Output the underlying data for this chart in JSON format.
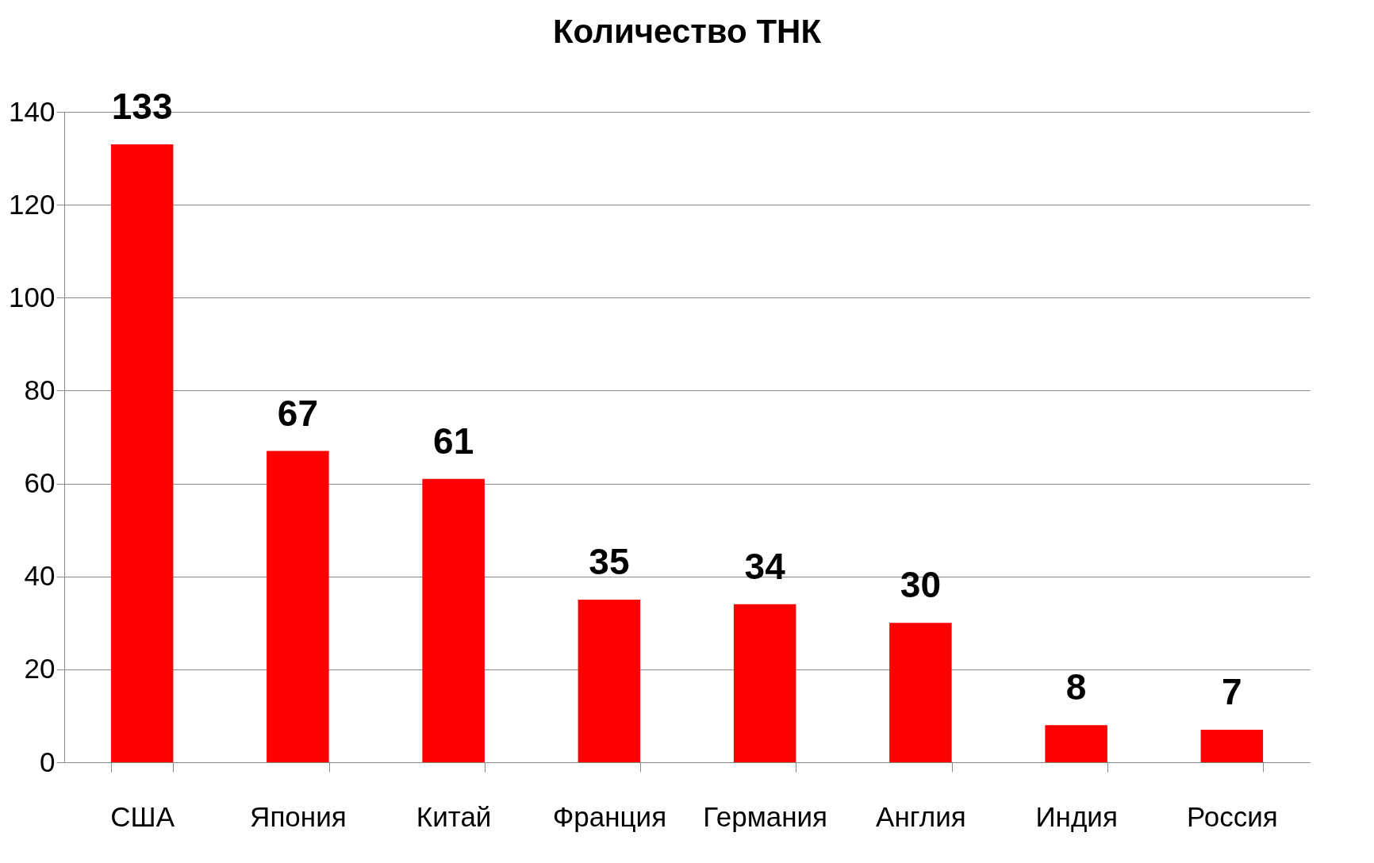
{
  "chart_data": {
    "type": "bar",
    "title": "Количество ТНК",
    "categories": [
      "США",
      "Япония",
      "Китай",
      "Франция",
      "Германия",
      "Англия",
      "Индия",
      "Россия"
    ],
    "values": [
      133,
      67,
      61,
      35,
      34,
      30,
      8,
      7
    ],
    "color": "#ff0000",
    "ylim": [
      0,
      140
    ],
    "yticks": [
      0,
      20,
      40,
      60,
      80,
      100,
      120,
      140
    ],
    "grid": "y",
    "data_labels": true
  }
}
